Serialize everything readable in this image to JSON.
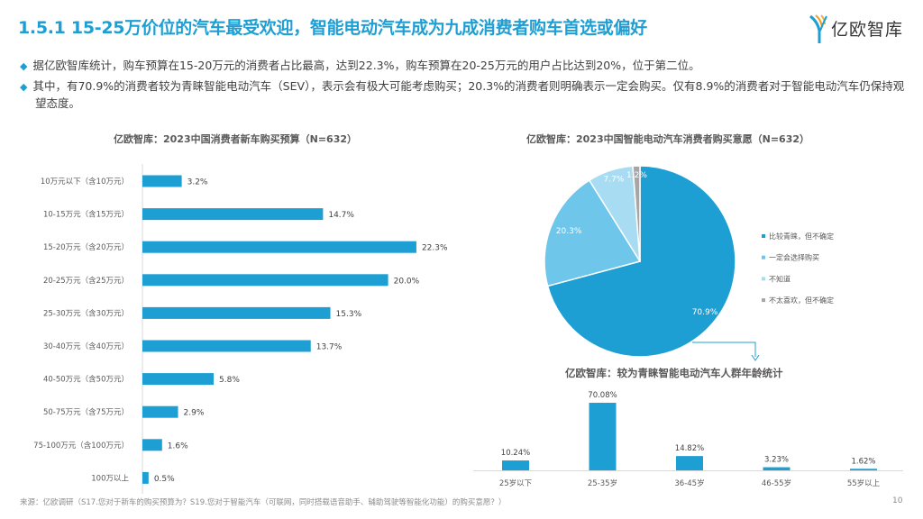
{
  "header": {
    "title": "1.5.1 15-25万价位的汽车最受欢迎，智能电动汽车成为九成消费者购车首选或偏好",
    "logo_text": "亿欧智库"
  },
  "bullets": [
    "据亿欧智库统计，购车预算在15-20万元的消费者占比最高，达到22.3%，购车预算在20-25万元的用户占比达到20%，位于第二位。",
    "其中，有70.9%的消费者较为青睐智能电动汽车（SEV），表示会有极大可能考虑购买；20.3%的消费者则明确表示一定会购买。仅有8.9%的消费者对于智能电动汽车仍保持观望态度。"
  ],
  "colors": {
    "accent": "#1e9fd4",
    "pie": [
      "#1e9fd4",
      "#6ec6ea",
      "#a8dcf3",
      "#a6a6a6"
    ]
  },
  "chart_data": [
    {
      "type": "bar",
      "orientation": "horizontal",
      "title": "亿欧智库：2023中国消费者新车购买预算（N=632）",
      "categories": [
        "10万元以下（含10万元）",
        "10-15万元（含15万元）",
        "15-20万元（含20万元）",
        "20-25万元（含25万元）",
        "25-30万元（含30万元）",
        "30-40万元（含40万元）",
        "40-50万元（含50万元）",
        "50-75万元（含75万元）",
        "75-100万元（含100万元）",
        "100万以上"
      ],
      "values": [
        3.2,
        14.7,
        22.3,
        20.0,
        15.3,
        13.7,
        5.8,
        2.9,
        1.6,
        0.5
      ],
      "labels": [
        "3.2%",
        "14.7%",
        "22.3%",
        "20.0%",
        "15.3%",
        "13.7%",
        "5.8%",
        "2.9%",
        "1.6%",
        "0.5%"
      ]
    },
    {
      "type": "pie",
      "title": "亿欧智库：2023中国智能电动汽车消费者购买意愿（N=632）",
      "categories": [
        "比较青睐，但不确定",
        "一定会选择购买",
        "不知道",
        "不太喜欢，但不确定"
      ],
      "values": [
        70.9,
        20.3,
        7.7,
        1.2
      ],
      "labels": [
        "70.9%",
        "20.3%",
        "7.7%",
        "1.2%"
      ],
      "legend": "right"
    },
    {
      "type": "bar",
      "title": "亿欧智库：较为青睐智能电动汽车人群年龄统计",
      "categories": [
        "25岁以下",
        "25-35岁",
        "36-45岁",
        "46-55岁",
        "55岁以上"
      ],
      "values": [
        10.24,
        70.08,
        14.82,
        3.23,
        1.62
      ],
      "labels": [
        "10.24%",
        "70.08%",
        "14.82%",
        "3.23%",
        "1.62%"
      ]
    }
  ],
  "footer": {
    "source": "来源：亿欧调研（S17.您对于新车的购买预算为？S19.您对于智能汽车（可联网，同时搭载语音助手、辅助驾驶等智能化功能）的购买意愿？）",
    "page": "10"
  }
}
